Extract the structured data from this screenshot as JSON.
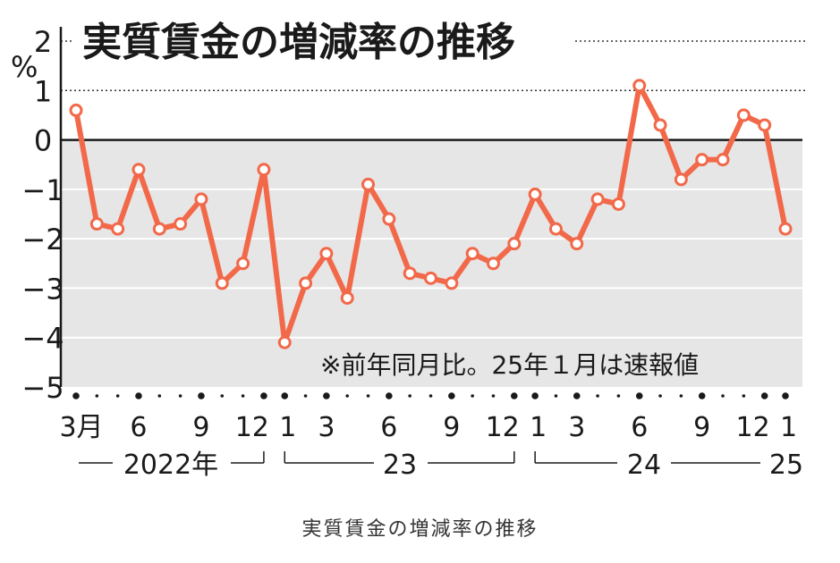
{
  "caption": "実質賃金の増減率の推移",
  "chart_data": {
    "type": "line",
    "title": "実質賃金の増減率の推移",
    "ylabel": "%",
    "ylim": [
      -5,
      2
    ],
    "yticks": [
      "2",
      "1",
      "0",
      "−1",
      "−2",
      "−3",
      "−4",
      "−5"
    ],
    "note": "※前年同月比。25年１月は速報値",
    "x_labels": [
      "3月",
      "6",
      "9",
      "12",
      "1",
      "3",
      "6",
      "9",
      "12",
      "1",
      "3",
      "6",
      "9",
      "12",
      "1"
    ],
    "x_label_month_index": [
      0,
      3,
      6,
      9,
      10,
      12,
      15,
      18,
      21,
      22,
      24,
      27,
      30,
      33,
      34
    ],
    "year_labels": [
      "2022年",
      "23",
      "24",
      "25"
    ],
    "series": [
      {
        "values": [
          0.6,
          -1.7,
          -1.8,
          -0.6,
          -1.8,
          -1.7,
          -1.2,
          -2.9,
          -2.5,
          -0.6,
          -4.1,
          -2.9,
          -2.3,
          -3.2,
          -0.9,
          -1.6,
          -2.7,
          -2.8,
          -2.9,
          -2.3,
          -2.5,
          -2.1,
          -1.1,
          -1.8,
          -2.1,
          -1.2,
          -1.3,
          1.1,
          0.3,
          -0.8,
          -0.4,
          -0.4,
          0.5,
          0.3,
          -1.8
        ]
      }
    ],
    "colors": {
      "line": "#f2694a",
      "negative_area": "#e6e6e6",
      "zero_line": "#1a1a1a"
    }
  }
}
